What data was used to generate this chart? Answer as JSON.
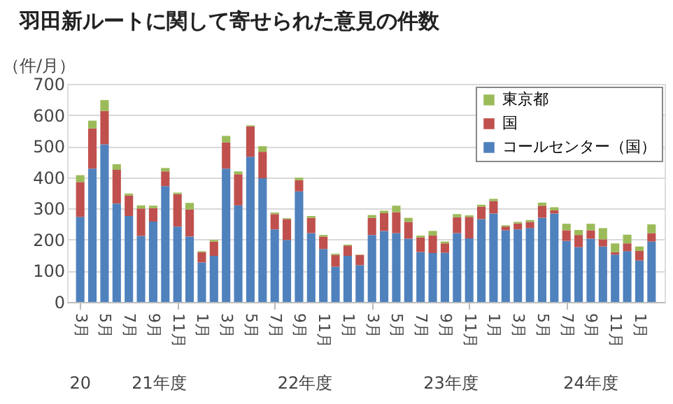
{
  "chart_data": {
    "type": "bar",
    "title": "羽田新ルートに関して寄せられた意見の件数",
    "ylabel": "（件/月）",
    "categories": [
      "3月",
      null,
      "5月",
      null,
      "7月",
      null,
      "9月",
      null,
      "11月",
      null,
      "1月",
      null,
      "3月",
      null,
      "5月",
      null,
      "7月",
      null,
      "9月",
      null,
      "11月",
      null,
      "1月",
      null,
      "3月",
      null,
      "5月",
      null,
      "7月",
      null,
      "9月",
      null,
      "11月",
      null,
      "1月",
      null,
      "3月",
      null,
      "5月",
      null,
      "7月",
      null,
      "9月",
      null,
      "11月",
      null,
      "1月",
      null
    ],
    "annotations": [
      "20",
      "21年度",
      "22年度",
      "23年度",
      "24年度"
    ],
    "stacked": true,
    "series": [
      {
        "name": "コールセンター（国）",
        "color": "#4f81bd",
        "values": [
          273,
          428,
          506,
          316,
          276,
          212,
          258,
          372,
          242,
          210,
          127,
          148,
          428,
          310,
          466,
          397,
          233,
          199,
          355,
          221,
          170,
          113,
          148,
          118,
          215,
          228,
          221,
          203,
          160,
          157,
          158,
          221,
          204,
          266,
          284,
          230,
          233,
          237,
          270,
          284,
          196,
          176,
          203,
          178,
          152,
          163,
          133,
          194
        ]
      },
      {
        "name": "国",
        "color": "#c0504d",
        "values": [
          112,
          129,
          107,
          108,
          66,
          88,
          43,
          47,
          104,
          87,
          33,
          46,
          84,
          100,
          98,
          85,
          49,
          67,
          36,
          49,
          40,
          38,
          33,
          33,
          55,
          57,
          67,
          54,
          47,
          56,
          30,
          51,
          69,
          40,
          40,
          12,
          19,
          20,
          39,
          10,
          34,
          39,
          27,
          23,
          8,
          25,
          31,
          27
        ]
      },
      {
        "name": "東京都",
        "color": "#9bbb59",
        "values": [
          22,
          25,
          35,
          18,
          6,
          10,
          8,
          11,
          5,
          21,
          3,
          5,
          21,
          9,
          3,
          18,
          5,
          3,
          8,
          6,
          5,
          4,
          3,
          1,
          9,
          8,
          21,
          13,
          6,
          15,
          6,
          10,
          5,
          6,
          7,
          4,
          5,
          6,
          10,
          10,
          21,
          16,
          21,
          36,
          28,
          28,
          14,
          28
        ]
      }
    ],
    "ylim": [
      0,
      700
    ],
    "yticks": [
      0,
      100,
      200,
      300,
      400,
      500,
      600,
      700
    ],
    "grid": "y",
    "legend": "top right"
  }
}
